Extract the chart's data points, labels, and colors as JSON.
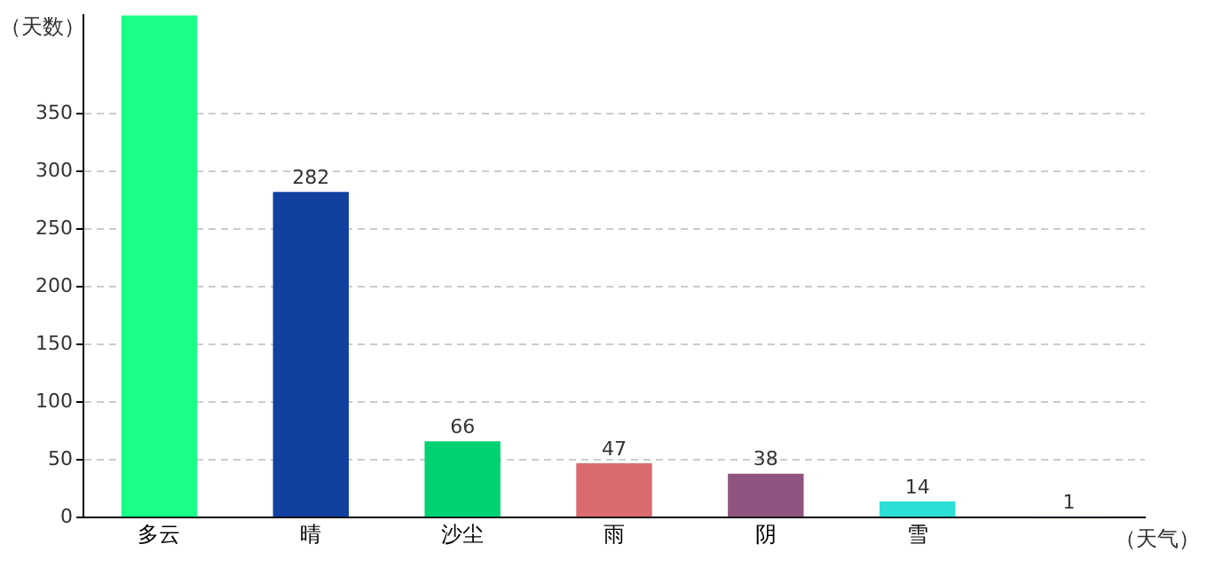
{
  "chart_data": {
    "type": "bar",
    "xlabel": "（天气）",
    "ylabel": "（天数）",
    "categories": [
      "多云",
      "晴",
      "沙尘",
      "雨",
      "阴",
      "雪",
      null
    ],
    "values": [
      435,
      282,
      66,
      47,
      38,
      14,
      1
    ],
    "colors": [
      "#1aff86",
      "#1240a0",
      "#00d273",
      "#d96a6e",
      "#8f5580",
      "#2bdfd4",
      "#6b1ec0"
    ],
    "value_labels": [
      null,
      "282",
      "66",
      "47",
      "38",
      "14",
      "1"
    ],
    "ylim": [
      0,
      435
    ],
    "yticks": [
      0,
      50,
      100,
      150,
      200,
      250,
      300,
      350
    ],
    "grid": "y",
    "legend": false
  }
}
